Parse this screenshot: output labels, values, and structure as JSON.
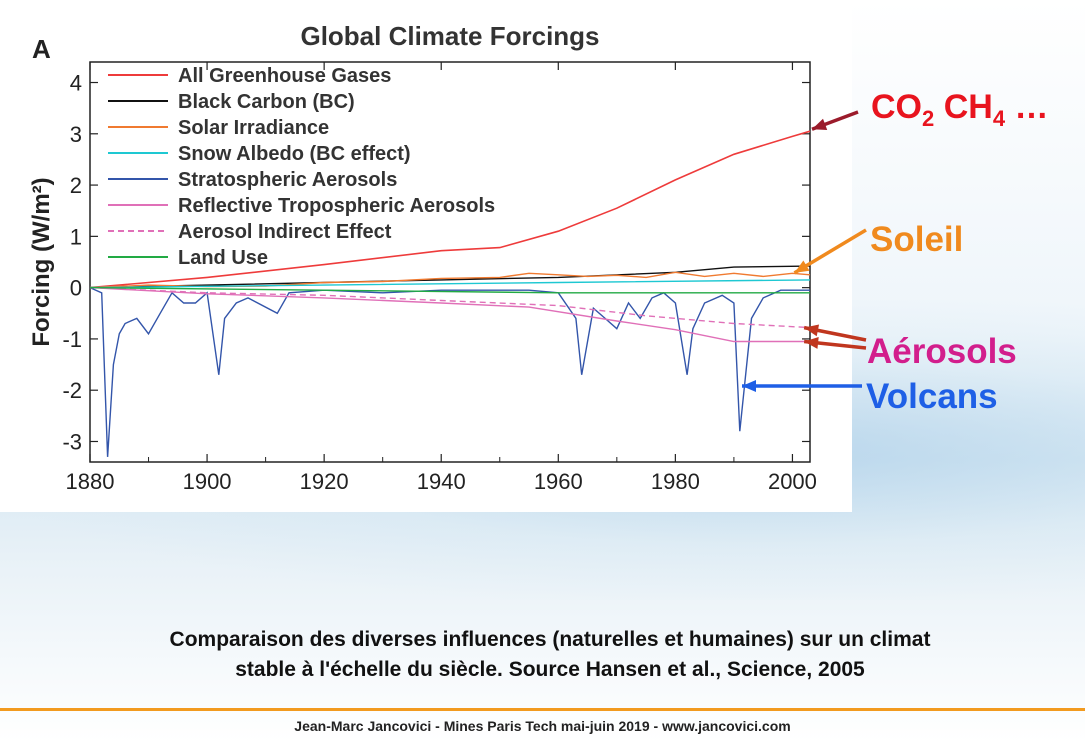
{
  "chart_data": {
    "type": "line",
    "panel_label": "A",
    "title": "Global Climate Forcings",
    "xlabel": "",
    "ylabel": "Forcing (W/m²)",
    "xlim": [
      1880,
      2003
    ],
    "ylim": [
      -3.4,
      4.4
    ],
    "x_ticks": [
      1880,
      1900,
      1920,
      1940,
      1960,
      1980,
      2000
    ],
    "y_ticks": [
      4,
      3,
      2,
      1,
      0,
      -1,
      -2,
      -3
    ],
    "grid": false,
    "legend_position": "top-left",
    "series": [
      {
        "name": "All Greenhouse Gases",
        "color": "#ee3b3b",
        "dashed": false,
        "points": [
          [
            1880,
            0
          ],
          [
            1900,
            0.2
          ],
          [
            1920,
            0.45
          ],
          [
            1940,
            0.72
          ],
          [
            1950,
            0.78
          ],
          [
            1960,
            1.1
          ],
          [
            1970,
            1.55
          ],
          [
            1980,
            2.1
          ],
          [
            1990,
            2.6
          ],
          [
            2000,
            2.95
          ],
          [
            2003,
            3.05
          ]
        ]
      },
      {
        "name": "Black Carbon (BC)",
        "color": "#111111",
        "dashed": false,
        "points": [
          [
            1880,
            0
          ],
          [
            1900,
            0.05
          ],
          [
            1920,
            0.1
          ],
          [
            1940,
            0.15
          ],
          [
            1960,
            0.2
          ],
          [
            1980,
            0.3
          ],
          [
            1990,
            0.4
          ],
          [
            2003,
            0.42
          ]
        ]
      },
      {
        "name": "Solar Irradiance",
        "color": "#f07a30",
        "dashed": false,
        "points": [
          [
            1880,
            0
          ],
          [
            1890,
            0.05
          ],
          [
            1900,
            0.02
          ],
          [
            1910,
            0.03
          ],
          [
            1920,
            0.1
          ],
          [
            1930,
            0.12
          ],
          [
            1940,
            0.18
          ],
          [
            1950,
            0.2
          ],
          [
            1955,
            0.28
          ],
          [
            1960,
            0.25
          ],
          [
            1965,
            0.22
          ],
          [
            1970,
            0.24
          ],
          [
            1975,
            0.2
          ],
          [
            1980,
            0.3
          ],
          [
            1985,
            0.22
          ],
          [
            1990,
            0.28
          ],
          [
            1995,
            0.22
          ],
          [
            2000,
            0.28
          ],
          [
            2003,
            0.25
          ]
        ]
      },
      {
        "name": "Snow Albedo (BC effect)",
        "color": "#1ec8d2",
        "dashed": false,
        "points": [
          [
            1880,
            0
          ],
          [
            1920,
            0.05
          ],
          [
            1960,
            0.1
          ],
          [
            2003,
            0.15
          ]
        ]
      },
      {
        "name": "Stratospheric Aerosols",
        "color": "#3355aa",
        "dashed": false,
        "points": [
          [
            1880,
            0
          ],
          [
            1882,
            -0.1
          ],
          [
            1883,
            -3.3
          ],
          [
            1884,
            -1.5
          ],
          [
            1885,
            -0.9
          ],
          [
            1886,
            -0.7
          ],
          [
            1888,
            -0.6
          ],
          [
            1890,
            -0.9
          ],
          [
            1892,
            -0.5
          ],
          [
            1894,
            -0.1
          ],
          [
            1896,
            -0.3
          ],
          [
            1898,
            -0.3
          ],
          [
            1900,
            -0.1
          ],
          [
            1902,
            -1.7
          ],
          [
            1903,
            -0.6
          ],
          [
            1905,
            -0.3
          ],
          [
            1907,
            -0.2
          ],
          [
            1912,
            -0.5
          ],
          [
            1914,
            -0.1
          ],
          [
            1920,
            -0.05
          ],
          [
            1930,
            -0.1
          ],
          [
            1940,
            -0.05
          ],
          [
            1950,
            -0.05
          ],
          [
            1955,
            -0.05
          ],
          [
            1960,
            -0.1
          ],
          [
            1963,
            -0.6
          ],
          [
            1964,
            -1.7
          ],
          [
            1966,
            -0.4
          ],
          [
            1968,
            -0.6
          ],
          [
            1970,
            -0.8
          ],
          [
            1972,
            -0.3
          ],
          [
            1974,
            -0.6
          ],
          [
            1976,
            -0.2
          ],
          [
            1978,
            -0.1
          ],
          [
            1980,
            -0.3
          ],
          [
            1982,
            -1.7
          ],
          [
            1983,
            -0.8
          ],
          [
            1985,
            -0.3
          ],
          [
            1988,
            -0.15
          ],
          [
            1990,
            -0.3
          ],
          [
            1991,
            -2.8
          ],
          [
            1993,
            -0.6
          ],
          [
            1995,
            -0.2
          ],
          [
            1998,
            -0.05
          ],
          [
            2003,
            -0.05
          ]
        ]
      },
      {
        "name": "Reflective Tropospheric Aerosols",
        "color": "#e070b8",
        "dashed": false,
        "points": [
          [
            1880,
            0
          ],
          [
            1900,
            -0.12
          ],
          [
            1920,
            -0.2
          ],
          [
            1940,
            -0.3
          ],
          [
            1955,
            -0.38
          ],
          [
            1970,
            -0.65
          ],
          [
            1980,
            -0.82
          ],
          [
            1990,
            -1.05
          ],
          [
            2003,
            -1.05
          ]
        ]
      },
      {
        "name": "Aerosol Indirect Effect",
        "color": "#e070b8",
        "dashed": true,
        "points": [
          [
            1880,
            0
          ],
          [
            1900,
            -0.1
          ],
          [
            1920,
            -0.15
          ],
          [
            1940,
            -0.25
          ],
          [
            1960,
            -0.35
          ],
          [
            1975,
            -0.55
          ],
          [
            1990,
            -0.7
          ],
          [
            2003,
            -0.78
          ]
        ]
      },
      {
        "name": "Land Use",
        "color": "#22aa44",
        "dashed": false,
        "points": [
          [
            1880,
            0
          ],
          [
            1920,
            -0.05
          ],
          [
            1960,
            -0.1
          ],
          [
            2003,
            -0.1
          ]
        ]
      }
    ]
  },
  "callouts": {
    "co2": {
      "main1": "CO",
      "sub1": "2",
      "gap": " ",
      "main2": "CH",
      "sub2": "4",
      "tail": " …",
      "color": "#e8141e"
    },
    "soleil": {
      "label": "Soleil",
      "color": "#f08a1e"
    },
    "aerosols": {
      "label": "Aérosols",
      "color": "#d21e8c"
    },
    "volcans": {
      "label": "Volcans",
      "color": "#1e5fe6"
    }
  },
  "caption": {
    "line1": "Comparaison des diverses influences (naturelles et humaines) sur un climat",
    "line2": "stable à l'échelle du siècle. Source Hansen et al., Science, 2005"
  },
  "footer": {
    "text": "Jean-Marc Jancovici - Mines Paris Tech mai-juin 2019 - www.jancovici.com"
  }
}
